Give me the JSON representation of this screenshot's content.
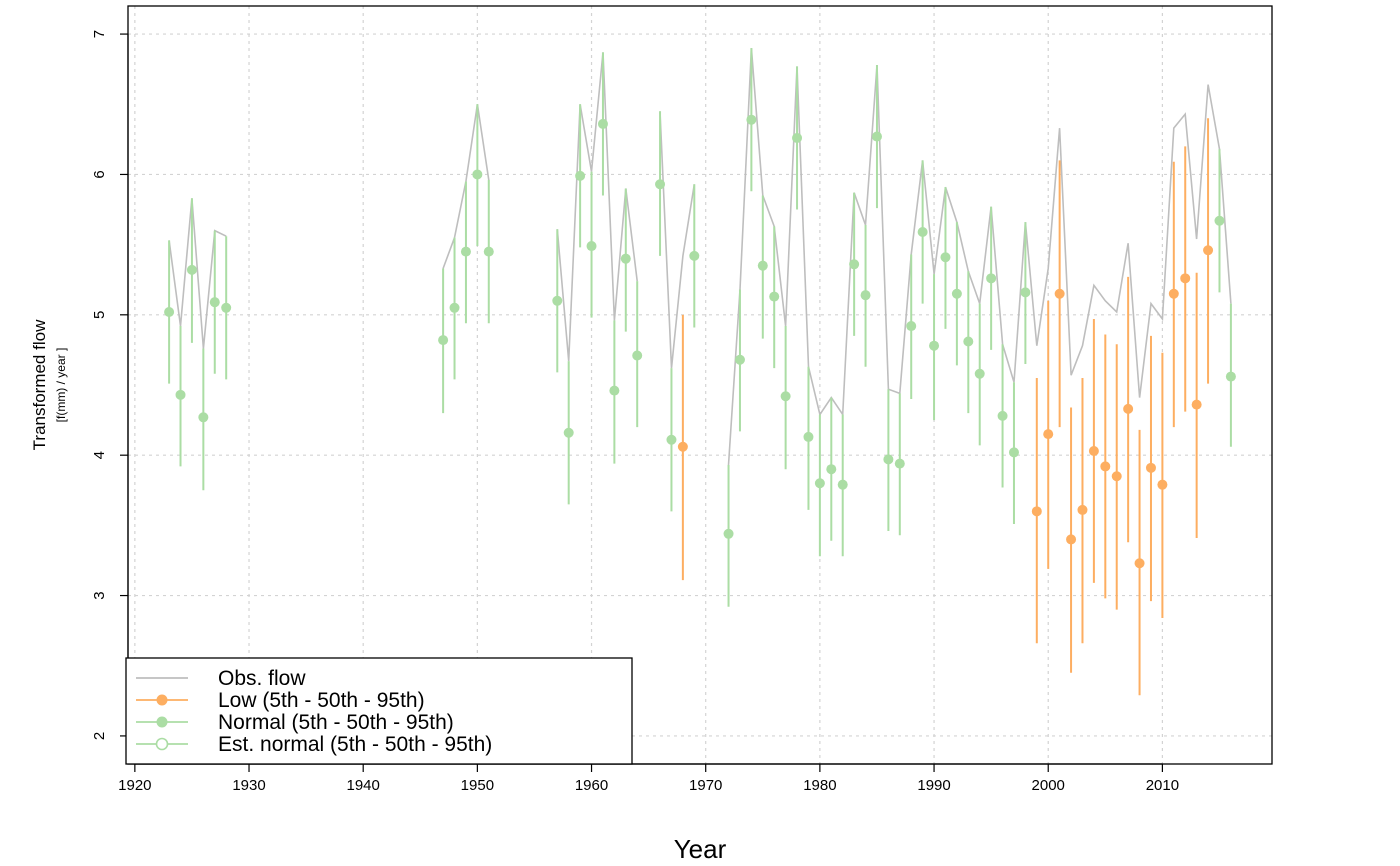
{
  "chart_data": {
    "type": "line",
    "xlabel": "Year",
    "ylabel": "Transformed flow",
    "ylabel_sub": "[f(mm) / year ]",
    "xlim": [
      1919.4,
      2019.6
    ],
    "ylim": [
      1.8,
      7.2
    ],
    "x_ticks": [
      1920,
      1930,
      1940,
      1950,
      1960,
      1970,
      1980,
      1990,
      2000,
      2010
    ],
    "y_ticks": [
      2,
      3,
      4,
      5,
      6,
      7
    ],
    "grid": true,
    "legend_position": "bottom-left",
    "colors": {
      "obs": "#bebebe",
      "low": "#fdae61",
      "normal": "#abdda4"
    },
    "legend": [
      {
        "key": "obs",
        "label": "Obs. flow",
        "marker": "line"
      },
      {
        "key": "low",
        "label": "Low (5th - 50th - 95th)",
        "marker": "filled"
      },
      {
        "key": "normal",
        "label": "Normal (5th - 50th - 95th)",
        "marker": "filled"
      },
      {
        "key": "normal",
        "label": "Est. normal (5th - 50th - 95th)",
        "marker": "open"
      }
    ],
    "obs_flow": [
      [
        [
          1923,
          5.53
        ],
        [
          1924,
          4.92
        ],
        [
          1925,
          5.83
        ],
        [
          1926,
          4.76
        ],
        [
          1927,
          5.6
        ],
        [
          1928,
          5.56
        ]
      ],
      [
        [
          1947,
          5.33
        ],
        [
          1948,
          5.55
        ],
        [
          1949,
          5.95
        ],
        [
          1950,
          6.5
        ],
        [
          1951,
          5.96
        ]
      ],
      [
        [
          1957,
          5.61
        ],
        [
          1958,
          4.67
        ],
        [
          1959,
          6.5
        ],
        [
          1960,
          6.02
        ],
        [
          1961,
          6.87
        ],
        [
          1962,
          4.96
        ],
        [
          1963,
          5.9
        ],
        [
          1964,
          5.24
        ]
      ],
      [
        [
          1966,
          6.45
        ],
        [
          1967,
          4.62
        ],
        [
          1968,
          5.42
        ],
        [
          1969,
          5.93
        ]
      ],
      [
        [
          1972,
          3.93
        ],
        [
          1973,
          5.18
        ],
        [
          1974,
          6.9
        ],
        [
          1975,
          5.85
        ],
        [
          1976,
          5.63
        ],
        [
          1977,
          4.92
        ],
        [
          1978,
          6.77
        ],
        [
          1979,
          4.63
        ],
        [
          1980,
          4.29
        ],
        [
          1981,
          4.41
        ],
        [
          1982,
          4.29
        ],
        [
          1983,
          5.87
        ],
        [
          1984,
          5.64
        ],
        [
          1985,
          6.78
        ],
        [
          1986,
          4.47
        ],
        [
          1987,
          4.44
        ],
        [
          1988,
          5.43
        ],
        [
          1989,
          6.1
        ],
        [
          1990,
          5.29
        ],
        [
          1991,
          5.91
        ],
        [
          1992,
          5.66
        ],
        [
          1993,
          5.31
        ],
        [
          1994,
          5.08
        ],
        [
          1995,
          5.77
        ],
        [
          1996,
          4.79
        ],
        [
          1997,
          4.52
        ],
        [
          1998,
          5.66
        ],
        [
          1999,
          4.78
        ],
        [
          2000,
          5.33
        ],
        [
          2001,
          6.33
        ],
        [
          2002,
          4.57
        ],
        [
          2003,
          4.78
        ],
        [
          2004,
          5.21
        ],
        [
          2005,
          5.1
        ],
        [
          2006,
          5.02
        ],
        [
          2007,
          5.51
        ],
        [
          2008,
          4.41
        ],
        [
          2009,
          5.08
        ],
        [
          2010,
          4.97
        ],
        [
          2011,
          6.33
        ],
        [
          2012,
          6.43
        ],
        [
          2013,
          5.54
        ],
        [
          2014,
          6.64
        ],
        [
          2015,
          6.18
        ],
        [
          2016,
          5.08
        ]
      ]
    ],
    "points": [
      {
        "year": 1923,
        "p5": 4.51,
        "p50": 5.02,
        "p95": 5.53,
        "cat": "normal"
      },
      {
        "year": 1924,
        "p5": 3.92,
        "p50": 4.43,
        "p95": 4.92,
        "cat": "normal"
      },
      {
        "year": 1925,
        "p5": 4.8,
        "p50": 5.32,
        "p95": 5.83,
        "cat": "normal"
      },
      {
        "year": 1926,
        "p5": 3.75,
        "p50": 4.27,
        "p95": 4.76,
        "cat": "normal"
      },
      {
        "year": 1927,
        "p5": 4.58,
        "p50": 5.09,
        "p95": 5.6,
        "cat": "normal"
      },
      {
        "year": 1928,
        "p5": 4.54,
        "p50": 5.05,
        "p95": 5.56,
        "cat": "normal"
      },
      {
        "year": 1947,
        "p5": 4.3,
        "p50": 4.82,
        "p95": 5.33,
        "cat": "normal"
      },
      {
        "year": 1948,
        "p5": 4.54,
        "p50": 5.05,
        "p95": 5.55,
        "cat": "normal"
      },
      {
        "year": 1949,
        "p5": 4.94,
        "p50": 5.45,
        "p95": 5.95,
        "cat": "normal"
      },
      {
        "year": 1950,
        "p5": 5.49,
        "p50": 6.0,
        "p95": 6.5,
        "cat": "normal"
      },
      {
        "year": 1951,
        "p5": 4.94,
        "p50": 5.45,
        "p95": 5.96,
        "cat": "normal"
      },
      {
        "year": 1957,
        "p5": 4.59,
        "p50": 5.1,
        "p95": 5.61,
        "cat": "normal"
      },
      {
        "year": 1958,
        "p5": 3.65,
        "p50": 4.16,
        "p95": 4.67,
        "cat": "normal"
      },
      {
        "year": 1959,
        "p5": 5.48,
        "p50": 5.99,
        "p95": 6.5,
        "cat": "normal"
      },
      {
        "year": 1960,
        "p5": 4.98,
        "p50": 5.49,
        "p95": 6.02,
        "cat": "normal"
      },
      {
        "year": 1961,
        "p5": 5.85,
        "p50": 6.36,
        "p95": 6.87,
        "cat": "normal"
      },
      {
        "year": 1962,
        "p5": 3.94,
        "p50": 4.46,
        "p95": 4.96,
        "cat": "normal"
      },
      {
        "year": 1963,
        "p5": 4.88,
        "p50": 5.4,
        "p95": 5.9,
        "cat": "normal"
      },
      {
        "year": 1964,
        "p5": 4.2,
        "p50": 4.71,
        "p95": 5.24,
        "cat": "normal"
      },
      {
        "year": 1966,
        "p5": 5.42,
        "p50": 5.93,
        "p95": 6.45,
        "cat": "normal"
      },
      {
        "year": 1967,
        "p5": 3.6,
        "p50": 4.11,
        "p95": 4.62,
        "cat": "normal"
      },
      {
        "year": 1968,
        "p5": 3.11,
        "p50": 4.06,
        "p95": 5.0,
        "cat": "low"
      },
      {
        "year": 1969,
        "p5": 4.91,
        "p50": 5.42,
        "p95": 5.93,
        "cat": "normal"
      },
      {
        "year": 1972,
        "p5": 2.92,
        "p50": 3.44,
        "p95": 3.93,
        "cat": "normal"
      },
      {
        "year": 1973,
        "p5": 4.17,
        "p50": 4.68,
        "p95": 5.18,
        "cat": "normal"
      },
      {
        "year": 1974,
        "p5": 5.88,
        "p50": 6.39,
        "p95": 6.9,
        "cat": "normal"
      },
      {
        "year": 1975,
        "p5": 4.83,
        "p50": 5.35,
        "p95": 5.85,
        "cat": "normal"
      },
      {
        "year": 1976,
        "p5": 4.62,
        "p50": 5.13,
        "p95": 5.63,
        "cat": "normal"
      },
      {
        "year": 1977,
        "p5": 3.9,
        "p50": 4.42,
        "p95": 4.92,
        "cat": "normal"
      },
      {
        "year": 1978,
        "p5": 5.75,
        "p50": 6.26,
        "p95": 6.77,
        "cat": "normal"
      },
      {
        "year": 1979,
        "p5": 3.61,
        "p50": 4.13,
        "p95": 4.63,
        "cat": "normal"
      },
      {
        "year": 1980,
        "p5": 3.28,
        "p50": 3.8,
        "p95": 4.29,
        "cat": "normal"
      },
      {
        "year": 1981,
        "p5": 3.39,
        "p50": 3.9,
        "p95": 4.41,
        "cat": "normal"
      },
      {
        "year": 1982,
        "p5": 3.28,
        "p50": 3.79,
        "p95": 4.29,
        "cat": "normal"
      },
      {
        "year": 1983,
        "p5": 4.85,
        "p50": 5.36,
        "p95": 5.87,
        "cat": "normal"
      },
      {
        "year": 1984,
        "p5": 4.63,
        "p50": 5.14,
        "p95": 5.64,
        "cat": "normal"
      },
      {
        "year": 1985,
        "p5": 5.76,
        "p50": 6.27,
        "p95": 6.78,
        "cat": "normal"
      },
      {
        "year": 1986,
        "p5": 3.46,
        "p50": 3.97,
        "p95": 4.47,
        "cat": "normal"
      },
      {
        "year": 1987,
        "p5": 3.43,
        "p50": 3.94,
        "p95": 4.44,
        "cat": "normal"
      },
      {
        "year": 1988,
        "p5": 4.4,
        "p50": 4.92,
        "p95": 5.43,
        "cat": "normal"
      },
      {
        "year": 1989,
        "p5": 5.08,
        "p50": 5.59,
        "p95": 6.1,
        "cat": "normal"
      },
      {
        "year": 1990,
        "p5": 4.25,
        "p50": 4.78,
        "p95": 5.29,
        "cat": "normal"
      },
      {
        "year": 1991,
        "p5": 4.9,
        "p50": 5.41,
        "p95": 5.91,
        "cat": "normal"
      },
      {
        "year": 1992,
        "p5": 4.64,
        "p50": 5.15,
        "p95": 5.66,
        "cat": "normal"
      },
      {
        "year": 1993,
        "p5": 4.3,
        "p50": 4.81,
        "p95": 5.31,
        "cat": "normal"
      },
      {
        "year": 1994,
        "p5": 4.07,
        "p50": 4.58,
        "p95": 5.08,
        "cat": "normal"
      },
      {
        "year": 1995,
        "p5": 4.75,
        "p50": 5.26,
        "p95": 5.77,
        "cat": "normal"
      },
      {
        "year": 1996,
        "p5": 3.77,
        "p50": 4.28,
        "p95": 4.79,
        "cat": "normal"
      },
      {
        "year": 1997,
        "p5": 3.51,
        "p50": 4.02,
        "p95": 4.52,
        "cat": "normal"
      },
      {
        "year": 1998,
        "p5": 4.65,
        "p50": 5.16,
        "p95": 5.66,
        "cat": "normal"
      },
      {
        "year": 1999,
        "p5": 2.66,
        "p50": 3.6,
        "p95": 4.55,
        "cat": "low"
      },
      {
        "year": 2000,
        "p5": 3.19,
        "p50": 4.15,
        "p95": 5.1,
        "cat": "low"
      },
      {
        "year": 2001,
        "p5": 4.2,
        "p50": 5.15,
        "p95": 6.1,
        "cat": "low"
      },
      {
        "year": 2002,
        "p5": 2.45,
        "p50": 3.4,
        "p95": 4.34,
        "cat": "low"
      },
      {
        "year": 2003,
        "p5": 2.66,
        "p50": 3.61,
        "p95": 4.55,
        "cat": "low"
      },
      {
        "year": 2004,
        "p5": 3.09,
        "p50": 4.03,
        "p95": 4.97,
        "cat": "low"
      },
      {
        "year": 2005,
        "p5": 2.98,
        "p50": 3.92,
        "p95": 4.86,
        "cat": "low"
      },
      {
        "year": 2006,
        "p5": 2.9,
        "p50": 3.85,
        "p95": 4.79,
        "cat": "low"
      },
      {
        "year": 2007,
        "p5": 3.38,
        "p50": 4.33,
        "p95": 5.27,
        "cat": "low"
      },
      {
        "year": 2008,
        "p5": 2.29,
        "p50": 3.23,
        "p95": 4.18,
        "cat": "low"
      },
      {
        "year": 2009,
        "p5": 2.96,
        "p50": 3.91,
        "p95": 4.85,
        "cat": "low"
      },
      {
        "year": 2010,
        "p5": 2.84,
        "p50": 3.79,
        "p95": 4.73,
        "cat": "low"
      },
      {
        "year": 2011,
        "p5": 4.2,
        "p50": 5.15,
        "p95": 6.09,
        "cat": "low"
      },
      {
        "year": 2012,
        "p5": 4.31,
        "p50": 5.26,
        "p95": 6.2,
        "cat": "low"
      },
      {
        "year": 2013,
        "p5": 3.41,
        "p50": 4.36,
        "p95": 5.3,
        "cat": "low"
      },
      {
        "year": 2014,
        "p5": 4.51,
        "p50": 5.46,
        "p95": 6.4,
        "cat": "low"
      },
      {
        "year": 2015,
        "p5": 5.16,
        "p50": 5.67,
        "p95": 6.18,
        "cat": "normal"
      },
      {
        "year": 2016,
        "p5": 4.06,
        "p50": 4.56,
        "p95": 5.08,
        "cat": "normal"
      }
    ]
  }
}
